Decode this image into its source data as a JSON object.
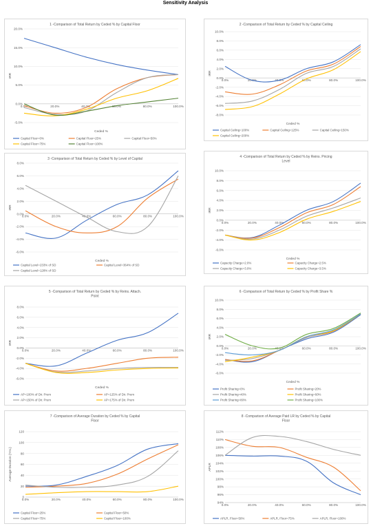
{
  "page_title": "Sensitivity Analysis",
  "chart_data": [
    {
      "type": "line",
      "title": "1 -Comparison of Total Return by Ceded % by Capital Floor",
      "title_lines": [
        "1 -Comparison of Total Return by Ceded % by Capital Floor"
      ],
      "xlabel": "Ceded %",
      "ylabel": "IRR",
      "x": [
        0,
        0.2,
        0.4,
        0.6,
        0.8,
        1.0
      ],
      "xticks": [
        "0.0%",
        "20.0%",
        "40.0%",
        "60.0%",
        "80.0%",
        "100.0%"
      ],
      "yticks": [
        "20.0%",
        "15.0%",
        "10.0%",
        "5.0%",
        "0.0%",
        "-5.0%"
      ],
      "ylim": [
        -5,
        20
      ],
      "y_step": 5,
      "x_axis_at_zero": true,
      "grid": true,
      "legend": "bottom",
      "series": [
        {
          "name": "Capital Floor=0%",
          "color": "#4472c4",
          "values": [
            17.5,
            15.0,
            12.5,
            10.5,
            9.0,
            7.8
          ]
        },
        {
          "name": "Capital Floor=25%",
          "color": "#ed7d31",
          "values": [
            -0.5,
            -2.5,
            -1.0,
            4.0,
            7.0,
            7.8
          ]
        },
        {
          "name": "Capital Floor=50%",
          "color": "#a5a5a5",
          "values": [
            -1.0,
            -2.8,
            -2.0,
            3.0,
            7.0,
            7.8
          ]
        },
        {
          "name": "Capital Floor=75%",
          "color": "#ffc000",
          "values": [
            -2.5,
            -3.2,
            -1.5,
            1.5,
            3.5,
            6.8
          ]
        },
        {
          "name": "Capital Floor=100%",
          "color": "#548235",
          "values": [
            0.0,
            -3.0,
            -2.0,
            -0.5,
            0.5,
            1.5
          ]
        }
      ]
    },
    {
      "type": "line",
      "title": "2 -Comparison of Total Return by Ceded % by Capital Ceiling",
      "title_lines": [
        "2 -Comparison of Total Return by Ceded % by Capital Ceiling"
      ],
      "xlabel": "Ceded %",
      "ylabel": "IRR",
      "x": [
        0,
        0.2,
        0.4,
        0.6,
        0.8,
        1.0
      ],
      "xticks": [
        "0.0%",
        "20.0%",
        "40.0%",
        "60.0%",
        "80.0%",
        "100.0%"
      ],
      "yticks": [
        "10.0%",
        "8.0%",
        "6.0%",
        "4.0%",
        "2.0%",
        "0.0%",
        "-2.0%",
        "-4.0%",
        "-6.0%",
        "-8.0%"
      ],
      "ylim": [
        -8,
        10
      ],
      "y_step": 2,
      "x_axis_at_zero": true,
      "grid": true,
      "legend": "bottom",
      "series": [
        {
          "name": "Capital Ceiling=100%",
          "color": "#4472c4",
          "values": [
            2.5,
            -0.5,
            -0.5,
            2.0,
            3.5,
            7.2
          ]
        },
        {
          "name": "Capital Ceiling=125%",
          "color": "#ed7d31",
          "values": [
            -3.0,
            -3.5,
            -1.5,
            1.5,
            3.0,
            6.8
          ]
        },
        {
          "name": "Capital Ceiling=150%",
          "color": "#a5a5a5",
          "values": [
            -5.5,
            -5.0,
            -2.5,
            1.0,
            2.5,
            6.3
          ]
        },
        {
          "name": "Capital Ceiling=200%",
          "color": "#ffc000",
          "values": [
            -6.8,
            -6.2,
            -3.5,
            -0.2,
            1.8,
            5.7
          ]
        }
      ]
    },
    {
      "type": "line",
      "title": "3 -Comparison of Total Return by Ceded % by Level of Capital",
      "title_lines": [
        "3 -Comparison of Total Return by Ceded % by Level of Capital"
      ],
      "xlabel": "Ceded %",
      "ylabel": "IRR",
      "x": [
        0,
        0.2,
        0.4,
        0.6,
        0.8,
        1.0
      ],
      "xticks": [
        "0.0%",
        "20.0%",
        "40.0%",
        "60.0%",
        "80.0%",
        "100.0%"
      ],
      "yticks": [
        "8.0%",
        "6.0%",
        "4.0%",
        "2.0%",
        "0.0%",
        "-2.0%",
        "-4.0%",
        "-6.0%"
      ],
      "ylim": [
        -6,
        8
      ],
      "y_step": 2,
      "x_axis_at_zero": true,
      "grid": true,
      "legend": "bottom",
      "series": [
        {
          "name": "Capital Level=233% of SD",
          "color": "#4472c4",
          "values": [
            -3.0,
            -3.8,
            -1.0,
            1.5,
            3.0,
            6.8
          ]
        },
        {
          "name": "Capital Level=364% of SD",
          "color": "#ed7d31",
          "values": [
            0.5,
            -2.0,
            -3.0,
            -2.0,
            2.5,
            5.5
          ]
        },
        {
          "name": "Capital Level=128% of SD",
          "color": "#a5a5a5",
          "values": [
            4.5,
            2.0,
            -0.5,
            -2.8,
            -2.0,
            6.0
          ]
        }
      ]
    },
    {
      "type": "line",
      "title": "4 -Comparison of Total Return by Ceded % by Reins. Pricing Level",
      "title_lines": [
        "4 -Comparison of Total Return by Ceded % by Reins. Pricing",
        "Level"
      ],
      "xlabel": "Ceded %",
      "ylabel": "IRR",
      "x": [
        0,
        0.2,
        0.4,
        0.6,
        0.8,
        1.0
      ],
      "xticks": [
        "0.0%",
        "20.0%",
        "40.0%",
        "60.0%",
        "80.0%",
        "100.0%"
      ],
      "yticks": [
        "10.0%",
        "8.0%",
        "6.0%",
        "4.0%",
        "2.0%",
        "0.0%",
        "-2.0%",
        "-4.0%",
        "-6.0%"
      ],
      "ylim": [
        -6,
        10
      ],
      "y_step": 2,
      "x_axis_at_zero": true,
      "grid": true,
      "legend": "bottom",
      "series": [
        {
          "name": "Capacity Charge=2.0%",
          "color": "#4472c4",
          "values": [
            -3.0,
            -3.5,
            -1.0,
            2.0,
            3.8,
            7.5
          ]
        },
        {
          "name": "Capacity Charge=2.5%",
          "color": "#ed7d31",
          "values": [
            -3.0,
            -3.6,
            -1.5,
            1.5,
            3.2,
            6.8
          ]
        },
        {
          "name": "Capacity Charge=3.0%",
          "color": "#a5a5a5",
          "values": [
            -3.0,
            -3.8,
            -2.0,
            0.8,
            2.5,
            4.5
          ]
        },
        {
          "name": "Capacity Charge=3.5%",
          "color": "#ffc000",
          "values": [
            -3.0,
            -4.0,
            -2.5,
            0.2,
            1.8,
            3.8
          ]
        }
      ]
    },
    {
      "type": "line",
      "title": "5 -Comparison of Total Return by Ceded % by Reins. Attach. Point",
      "title_lines": [
        "5 -Comparison of Total Return by Ceded % by Reins. Attach.",
        "Point"
      ],
      "xlabel": "Ceded %",
      "ylabel": "IRR",
      "x": [
        0,
        0.2,
        0.4,
        0.6,
        0.8,
        1.0
      ],
      "xticks": [
        "0.0%",
        "20.0%",
        "40.0%",
        "60.0%",
        "80.0%",
        "100.0%"
      ],
      "yticks": [
        "8.0%",
        "6.0%",
        "4.0%",
        "2.0%",
        "0.0%",
        "-2.0%",
        "-4.0%",
        "-6.0%"
      ],
      "ylim": [
        -6,
        8
      ],
      "y_step": 2,
      "x_axis_at_zero": true,
      "grid": true,
      "legend": "bottom",
      "series": [
        {
          "name": "AP=100% of Dir. Prem",
          "color": "#4472c4",
          "values": [
            -3.0,
            -3.5,
            -1.0,
            1.5,
            3.0,
            6.8
          ]
        },
        {
          "name": "AP=125% of Dir. Prem",
          "color": "#ed7d31",
          "values": [
            -3.0,
            -4.5,
            -4.0,
            -3.0,
            -2.0,
            -1.8
          ]
        },
        {
          "name": "AP=150% of Dir. Prem",
          "color": "#a5a5a5",
          "values": [
            -3.0,
            -4.7,
            -4.5,
            -4.0,
            -3.8,
            -3.8
          ]
        },
        {
          "name": "AP=175% of Dir. Prem",
          "color": "#ffc000",
          "values": [
            -3.0,
            -4.8,
            -4.8,
            -4.3,
            -4.0,
            -3.9
          ]
        }
      ]
    },
    {
      "type": "line",
      "title": "6 -Comparison of Total Return by Ceded % by Profit Share %",
      "title_lines": [
        "6 -Comparison of Total Return by Ceded % by Profit Share %"
      ],
      "xlabel": "Ceded %",
      "ylabel": "IRR",
      "x": [
        0,
        0.2,
        0.4,
        0.6,
        0.8,
        1.0
      ],
      "xticks": [
        "0.0%",
        "20.0%",
        "40.0%",
        "60.0%",
        "80.0%",
        "100.0%"
      ],
      "yticks": [
        "10.0%",
        "8.0%",
        "6.0%",
        "4.0%",
        "2.0%",
        "0.0%",
        "-2.0%",
        "-4.0%",
        "-6.0%"
      ],
      "ylim": [
        -6,
        10
      ],
      "y_step": 2,
      "x_axis_at_zero": true,
      "grid": true,
      "legend": "bottom",
      "series": [
        {
          "name": "Profit Sharing=0%",
          "color": "#4472c4",
          "values": [
            -3.0,
            -3.5,
            -1.0,
            1.5,
            3.0,
            6.8
          ]
        },
        {
          "name": "Profit Sharing=20%",
          "color": "#ed7d31",
          "values": [
            -3.0,
            -3.3,
            -1.0,
            1.8,
            3.2,
            7.0
          ]
        },
        {
          "name": "Profit Sharing=40%",
          "color": "#a5a5a5",
          "values": [
            -3.2,
            -2.8,
            -1.0,
            1.8,
            3.3,
            7.0
          ]
        },
        {
          "name": "Profit Sharing=60%",
          "color": "#ffc000",
          "values": [
            -3.5,
            -2.5,
            -1.0,
            2.0,
            3.3,
            7.0
          ]
        },
        {
          "name": "Profit Sharing=80%",
          "color": "#5b9bd5",
          "values": [
            -1.5,
            -2.0,
            -1.0,
            2.0,
            3.5,
            7.0
          ]
        },
        {
          "name": "Profit Sharing=100%",
          "color": "#70ad47",
          "values": [
            2.5,
            0.0,
            -0.5,
            2.5,
            3.8,
            7.2
          ]
        }
      ]
    },
    {
      "type": "line",
      "title": "7 -Comparison of Average Duration by Ceded % by Capital Floor",
      "title_lines": [
        "7 -Comparison of Average Duration by Ceded % by Capital",
        "Floor"
      ],
      "xlabel": "",
      "ylabel": "Average Duration (Yrs.)",
      "x": [
        0,
        0.2,
        0.4,
        0.6,
        0.8,
        1.0
      ],
      "xticks": [
        "0.0%",
        "20.0%",
        "40.0%",
        "60.0%",
        "80.0%",
        "100.0%"
      ],
      "yticks": [
        "120",
        "100",
        "80",
        "60",
        "40",
        "20",
        "0"
      ],
      "ylim": [
        0,
        120
      ],
      "y_step": 20,
      "x_axis_at_zero": false,
      "grid": true,
      "legend": "bottom",
      "series": [
        {
          "name": "Capital Floor=25%",
          "color": "#4472c4",
          "values": [
            20,
            22,
            38,
            58,
            88,
            98
          ]
        },
        {
          "name": "Capital Floor=50%",
          "color": "#ed7d31",
          "values": [
            18,
            20,
            25,
            42,
            70,
            96
          ]
        },
        {
          "name": "Capital Floor=75%",
          "color": "#a5a5a5",
          "values": [
            22,
            18,
            18,
            22,
            38,
            85
          ]
        },
        {
          "name": "Capital Floor=100%",
          "color": "#ffc000",
          "values": [
            5,
            8,
            10,
            10,
            10,
            20
          ]
        }
      ]
    },
    {
      "type": "line",
      "title": "8 -Comparison of Average Paid LR by Ceded % by Capital Floor",
      "title_lines": [
        "8 -Comparison of Average Paid LR by Ceded % by Capital",
        "Floor"
      ],
      "xlabel": "",
      "ylabel": "APLR",
      "x": [
        0,
        0.2,
        0.4,
        0.6,
        0.8,
        1.0
      ],
      "xticks": [
        "0.0%",
        "20.0%",
        "40.0%",
        "60.0%",
        "80.0%",
        "100.0%"
      ],
      "yticks": [
        "112%",
        "110%",
        "108%",
        "106%",
        "104%",
        "102%",
        "100%",
        "98%",
        "96%",
        "94%"
      ],
      "ylim": [
        94,
        112
      ],
      "y_step": 2,
      "x_axis_at_zero": false,
      "grid": true,
      "legend": "bottom",
      "series": [
        {
          "name": "APLR, Floor=50%",
          "color": "#4472c4",
          "values": [
            106.0,
            105.8,
            105.8,
            104.5,
            99.0,
            96.0
          ]
        },
        {
          "name": "APLR, Floor=75%",
          "color": "#ed7d31",
          "values": [
            110.0,
            108.3,
            108.0,
            105.5,
            103.0,
            97.0
          ]
        },
        {
          "name": "APLR, Floor=100%",
          "color": "#a5a5a5",
          "values": [
            106.0,
            110.5,
            110.8,
            109.5,
            107.5,
            106.0
          ]
        }
      ]
    }
  ]
}
